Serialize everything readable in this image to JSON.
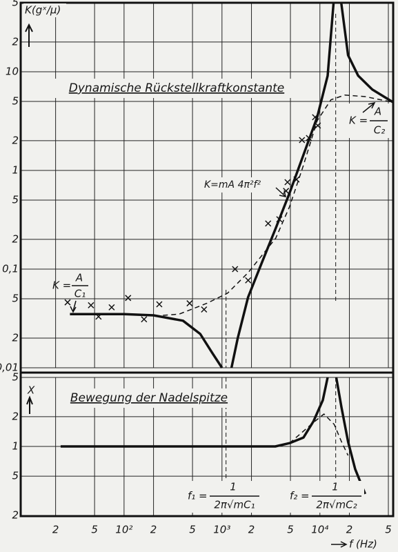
{
  "chart_data": [
    {
      "type": "line",
      "title": "Dynamische Rückstellkraftkonstante",
      "y_label": "K(gˣ/μ)",
      "log_x": true,
      "log_y": true,
      "grid": true,
      "xlim": [
        8.8,
        56000
      ],
      "ylim": [
        0.01,
        50
      ],
      "yticks": [
        {
          "value": 50,
          "label": "5"
        },
        {
          "value": 20,
          "label": "2"
        },
        10,
        5,
        2,
        1,
        {
          "value": 0.5,
          "label": "5"
        },
        {
          "value": 0.2,
          "label": "2"
        },
        {
          "value": 0.1,
          "label": "0,1"
        },
        {
          "value": 0.05,
          "label": "5"
        },
        {
          "value": 0.02,
          "label": "2"
        },
        {
          "value": 0.01,
          "label": "0,01"
        }
      ],
      "vlines": [
        1100,
        14500
      ],
      "series": [
        {
          "style": "solid",
          "color": "#111111",
          "x": [
            28,
            50,
            100,
            200,
            400,
            600,
            800,
            1000
          ],
          "values": [
            0.035,
            0.035,
            0.035,
            0.034,
            0.03,
            0.022,
            0.014,
            0.01
          ]
        },
        {
          "style": "solid",
          "color": "#111111",
          "x": [
            1250,
            1450,
            1850,
            2560,
            3540,
            4900,
            6780,
            9370,
            12000,
            13800
          ],
          "values": [
            0.01,
            0.02,
            0.052,
            0.117,
            0.26,
            0.59,
            1.43,
            3.46,
            9.1,
            50
          ]
        },
        {
          "style": "solid",
          "color": "#111111",
          "x": [
            16500,
            19400,
            24600,
            34300,
            56000
          ],
          "values": [
            50,
            14.7,
            9.1,
            6.6,
            4.9
          ]
        },
        {
          "style": "dashed",
          "color": "#111111",
          "x": [
            250,
            366,
            700,
            1140,
            1850,
            3540,
            4900,
            6780,
            9370,
            12970,
            17900,
            29000,
            56000
          ],
          "values": [
            0.034,
            0.035,
            0.045,
            0.057,
            0.092,
            0.206,
            0.43,
            1.12,
            3.18,
            5.2,
            5.8,
            5.6,
            4.9
          ]
        },
        {
          "style": "cross",
          "color": "#111111",
          "x": [
            26.5,
            45.9,
            54.9,
            74.7,
            110,
            160,
            229,
            467,
            656,
            1360,
            1850,
            2960,
            3850,
            4510,
            4670,
            5770,
            6560,
            7720,
            8930,
            9530
          ],
          "values": [
            0.046,
            0.043,
            0.033,
            0.041,
            0.051,
            0.031,
            0.044,
            0.045,
            0.039,
            0.1,
            0.077,
            0.29,
            0.32,
            0.62,
            0.76,
            0.81,
            2.03,
            2.13,
            3.46,
            2.85
          ]
        }
      ],
      "annotations": {
        "k_low": {
          "lhs": "K =",
          "num": "A",
          "den": "C₁"
        },
        "k_high": {
          "lhs": "K =",
          "num": "A",
          "den": "C₂"
        },
        "k_mass": "K=mA 4π²f²"
      }
    },
    {
      "type": "line",
      "title": "Bewegung der Nadelspitze",
      "y_label": "X",
      "x_label": "f (Hz)",
      "log_x": true,
      "log_y": true,
      "grid": true,
      "xlim": [
        8.8,
        56000
      ],
      "ylim": [
        0.2,
        5
      ],
      "xticks": [
        {
          "value": 20,
          "label": "2"
        },
        {
          "value": 50,
          "label": "5"
        },
        {
          "value": 100,
          "label": "10²"
        },
        {
          "value": 200,
          "label": "2"
        },
        {
          "value": 500,
          "label": "5"
        },
        {
          "value": 1000,
          "label": "10³"
        },
        {
          "value": 2000,
          "label": "2"
        },
        {
          "value": 5000,
          "label": "5"
        },
        {
          "value": 10000,
          "label": "10⁴"
        },
        {
          "value": 20000,
          "label": "2"
        },
        {
          "value": 50000,
          "label": "5"
        }
      ],
      "yticks": [
        5,
        2,
        1,
        {
          "value": 0.5,
          "label": "5"
        },
        {
          "value": 0.2,
          "label": "2"
        }
      ],
      "series": [
        {
          "style": "solid",
          "color": "#111111",
          "x": [
            22.5,
            300,
            3500,
            4900,
            6800,
            8600,
            10700,
            12000
          ],
          "values": [
            1,
            1,
            1,
            1.08,
            1.23,
            1.8,
            2.94,
            5
          ]
        },
        {
          "style": "solid",
          "color": "#111111",
          "x": [
            14700,
            16600,
            19400,
            22900,
            29000
          ],
          "values": [
            5,
            2.5,
            1.12,
            0.59,
            0.33
          ]
        },
        {
          "style": "dashed",
          "color": "#111111",
          "x": [
            4900,
            6800,
            8600,
            11000,
            14000,
            16600,
            19400
          ],
          "values": [
            1.08,
            1.43,
            1.75,
            2.13,
            1.67,
            1.12,
            0.81
          ]
        }
      ],
      "annotations": {
        "f1": {
          "lhs": "f₁ =",
          "num": "1",
          "den": "2π√mC₁"
        },
        "f2": {
          "lhs": "f₂ =",
          "num": "1",
          "den": "2π√mC₂"
        }
      }
    }
  ]
}
